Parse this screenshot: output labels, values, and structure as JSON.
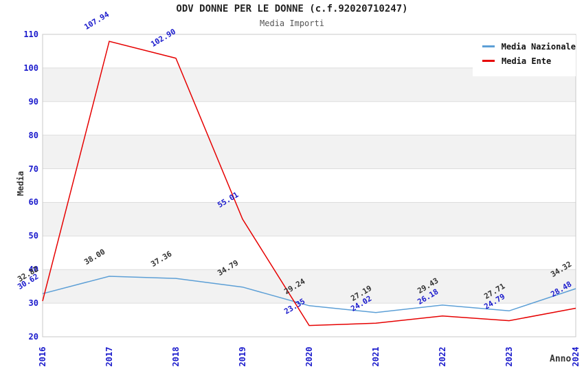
{
  "title": "ODV DONNE PER LE DONNE (c.f.92020710247)",
  "subtitle": "Media Importi",
  "axes": {
    "y_label": "Media",
    "x_label": "Anno",
    "y_ticks": [
      20,
      30,
      40,
      50,
      60,
      70,
      80,
      90,
      100,
      110
    ],
    "x_ticks": [
      "2016",
      "2017",
      "2018",
      "2019",
      "2020",
      "2021",
      "2022",
      "2023",
      "2024"
    ]
  },
  "legend": {
    "items": [
      {
        "label": "Media Nazionale"
      },
      {
        "label": "Media Ente"
      }
    ]
  },
  "chart_data": {
    "type": "line",
    "x": [
      2016,
      2017,
      2018,
      2019,
      2020,
      2021,
      2022,
      2023,
      2024
    ],
    "series": [
      {
        "name": "Media Nazionale",
        "color": "#5C9FD6",
        "label_color": "#333333",
        "values": [
          32.82,
          38.0,
          37.36,
          34.79,
          29.24,
          27.19,
          29.43,
          27.71,
          34.32
        ]
      },
      {
        "name": "Media Ente",
        "color": "#E60000",
        "label_color": "#1A1ACC",
        "values": [
          30.62,
          107.94,
          102.9,
          55.01,
          23.35,
          24.02,
          26.18,
          24.79,
          28.48
        ]
      }
    ],
    "title": "ODV DONNE PER LE DONNE (c.f.92020710247)",
    "subtitle": "Media Importi",
    "xlabel": "Anno",
    "ylabel": "Media",
    "ylim": [
      20,
      110
    ],
    "grid": true,
    "band_fill": "#F2F2F2",
    "grid_color": "#DDDDDD",
    "border_color": "#C8C8C8",
    "tick_color": "#1A1ACC",
    "legend_position": "top-right"
  }
}
